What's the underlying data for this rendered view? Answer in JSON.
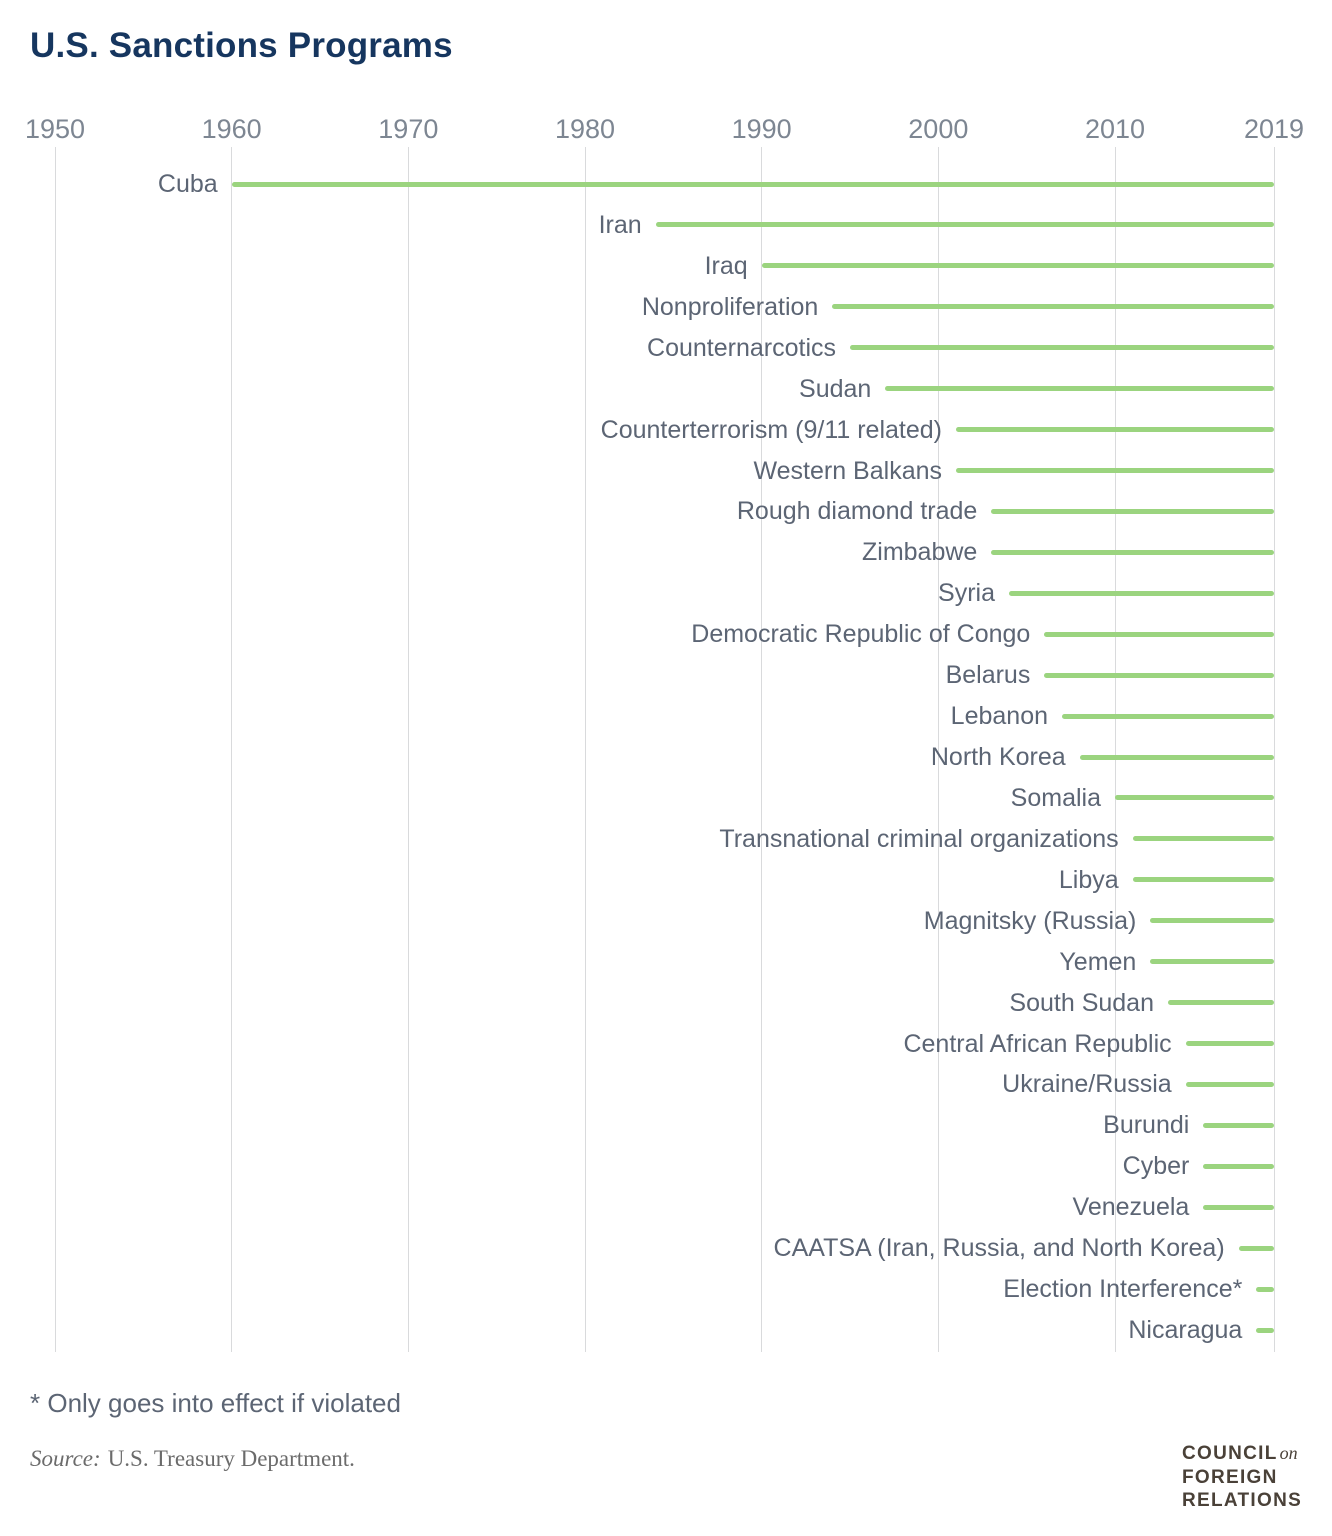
{
  "header": {
    "title": "U.S. Sanctions Programs"
  },
  "colors": {
    "bar_green": "#9bd47f",
    "grid_gray": "#d9dadc",
    "axis_label_gray": "#7d8692",
    "row_label_gray": "#5c6574",
    "title_navy": "#16365f",
    "source_gray": "#6b6b6b",
    "logo_brown": "#4a4138"
  },
  "footnote": "* Only goes into effect if violated",
  "source": {
    "label": "Source:",
    "text": "U.S. Treasury Department."
  },
  "logo": {
    "line1": "COUNCIL",
    "line1_conj": "on",
    "line2": "FOREIGN",
    "line3": "RELATIONS"
  },
  "chart_data": {
    "type": "bar",
    "subtype": "horizontal-timeline",
    "title": "U.S. Sanctions Programs",
    "x_axis": {
      "min": 1950,
      "max": 2019,
      "ticks": [
        1950,
        1960,
        1970,
        1980,
        1990,
        2000,
        2010,
        2019
      ],
      "grid": true
    },
    "bar_end_year": 2019,
    "legend": "none",
    "programs": [
      {
        "label": "Cuba",
        "start_year": 1960
      },
      {
        "label": "Iran",
        "start_year": 1984
      },
      {
        "label": "Iraq",
        "start_year": 1990
      },
      {
        "label": "Nonproliferation",
        "start_year": 1994
      },
      {
        "label": "Counternarcotics",
        "start_year": 1995
      },
      {
        "label": "Sudan",
        "start_year": 1997
      },
      {
        "label": "Counterterrorism (9/11 related)",
        "start_year": 2001
      },
      {
        "label": "Western Balkans",
        "start_year": 2001
      },
      {
        "label": "Rough diamond trade",
        "start_year": 2003
      },
      {
        "label": "Zimbabwe",
        "start_year": 2003
      },
      {
        "label": "Syria",
        "start_year": 2004
      },
      {
        "label": "Democratic Republic of Congo",
        "start_year": 2006
      },
      {
        "label": "Belarus",
        "start_year": 2006
      },
      {
        "label": "Lebanon",
        "start_year": 2007
      },
      {
        "label": "North Korea",
        "start_year": 2008
      },
      {
        "label": "Somalia",
        "start_year": 2010
      },
      {
        "label": "Transnational criminal organizations",
        "start_year": 2011
      },
      {
        "label": "Libya",
        "start_year": 2011
      },
      {
        "label": "Magnitsky (Russia)",
        "start_year": 2012
      },
      {
        "label": "Yemen",
        "start_year": 2012
      },
      {
        "label": "South Sudan",
        "start_year": 2013
      },
      {
        "label": "Central African Republic",
        "start_year": 2014
      },
      {
        "label": "Ukraine/Russia",
        "start_year": 2014
      },
      {
        "label": "Burundi",
        "start_year": 2015
      },
      {
        "label": "Cyber",
        "start_year": 2015
      },
      {
        "label": "Venezuela",
        "start_year": 2015
      },
      {
        "label": "CAATSA (Iran, Russia, and North Korea)",
        "start_year": 2017
      },
      {
        "label": "Election Interference*",
        "start_year": 2018
      },
      {
        "label": "Nicaragua",
        "start_year": 2018
      }
    ]
  }
}
